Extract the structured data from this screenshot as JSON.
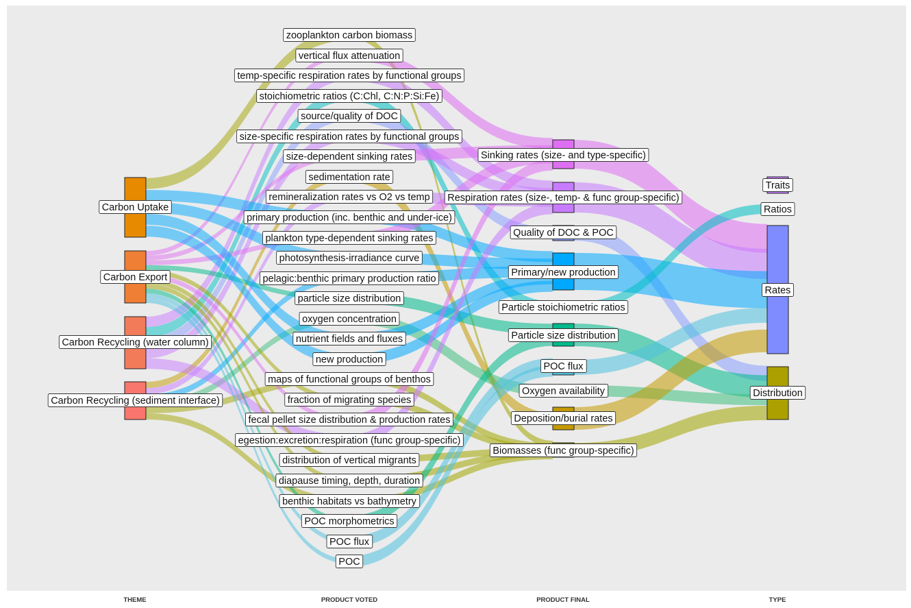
{
  "axes": [
    "THEME",
    "PRODUCT VOTED",
    "PRODUCT FINAL",
    "TYPE"
  ],
  "themes": [
    {
      "label": "Carbon Uptake",
      "color": "#e88a00"
    },
    {
      "label": "Carbon Export",
      "color": "#ef7f35"
    },
    {
      "label": "Carbon Recycling (water column)",
      "color": "#f27c5a"
    },
    {
      "label": "Carbon Recycling (sediment interface)",
      "color": "#f8766d"
    }
  ],
  "voted": [
    "zooplankton carbon biomass",
    "vertical flux attenuation",
    "temp-specific respiration rates by functional groups",
    "stoichiometric ratios (C:Chl, C:N:P:Si:Fe)",
    "source/quality of DOC",
    "size-specific respiration rates by functional groups",
    "size-dependent sinking rates",
    "sedimentation rate",
    "remineralization rates vs O2 vs temp",
    "primary production (inc. benthic and under-ice)",
    "plankton type-dependent sinking rates",
    "photosynthesis-irradiance curve",
    "pelagic:benthic primary production ratio",
    "particle size distribution",
    "oxygen concentration",
    "nutrient fields and fluxes",
    "new production",
    "maps of functional groups of benthos",
    "fraction of migrating species",
    "fecal pellet size distribution & production rates",
    "egestion:excretion:respiration (func group-specific)",
    "distribution of vertical migrants",
    "diapause timing, depth, duration",
    "benthic habitats vs bathymetry",
    "POC morphometrics",
    "POC flux",
    "POC"
  ],
  "final": [
    {
      "label": "Sinking rates (size- and type-specific)",
      "color": "#df6ff2"
    },
    {
      "label": "Respiration rates (size-, temp- & func group-specific)",
      "color": "#c77cff"
    },
    {
      "label": "Quality of DOC & POC",
      "color": "#8aa0ff"
    },
    {
      "label": "Primary/new production",
      "color": "#00a9ff"
    },
    {
      "label": "Particle stoichiometric ratios",
      "color": "#00bfc4"
    },
    {
      "label": "Particle size distribution",
      "color": "#00b98c"
    },
    {
      "label": "POC flux",
      "color": "#4ec1e0"
    },
    {
      "label": "Oxygen availability",
      "color": "#3fbf7f"
    },
    {
      "label": "Deposition/burial rates",
      "color": "#c49a00"
    },
    {
      "label": "Biomasses (func group-specific)",
      "color": "#a3a500"
    }
  ],
  "types": [
    {
      "label": "Traits",
      "color": "#c77cff"
    },
    {
      "label": "Ratios",
      "color": "#00bfc4"
    },
    {
      "label": "Rates",
      "color": "#7f8cff"
    },
    {
      "label": "Distribution",
      "color": "#aca000"
    }
  ]
}
